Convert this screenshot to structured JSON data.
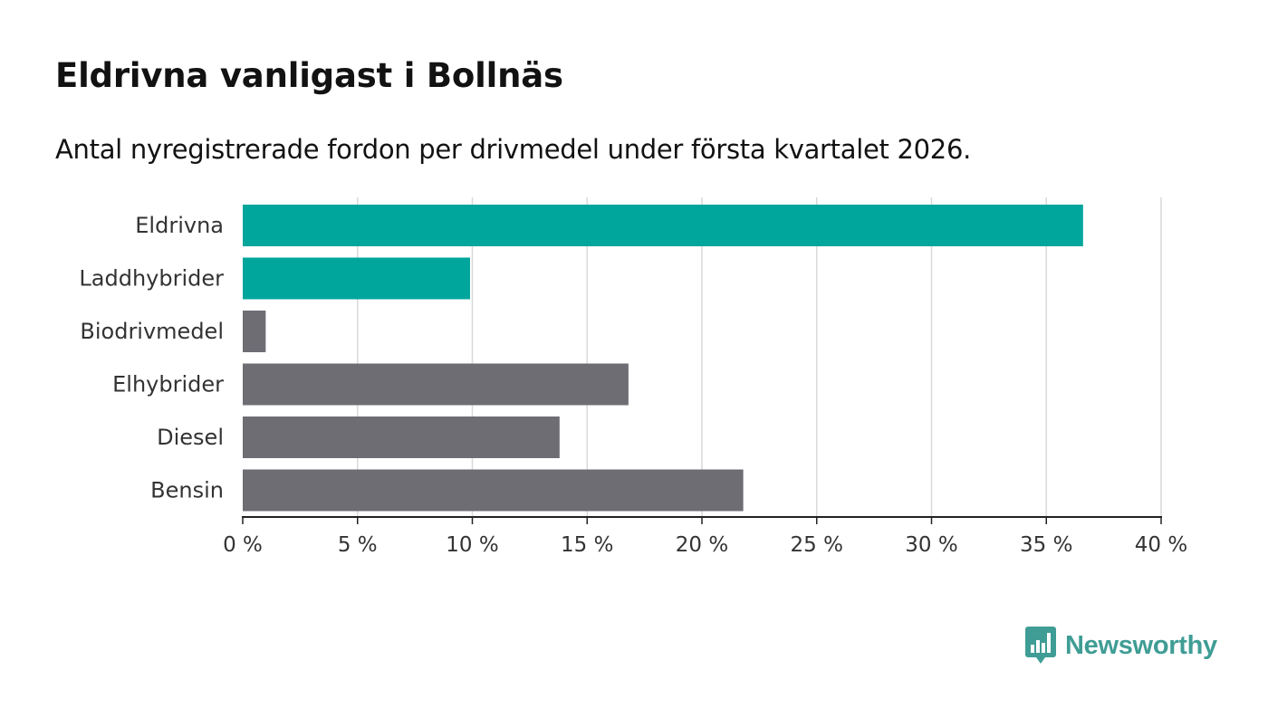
{
  "header": {
    "title": "Eldrivna vanligast i Bollnäs",
    "subtitle": "Antal nyregistrerade fordon per drivmedel under första kvartalet 2026."
  },
  "logo": {
    "text": "Newsworthy",
    "icon": "bar-chart-speech-bubble-icon",
    "color": "#3f9d95"
  },
  "chart_data": {
    "type": "bar",
    "orientation": "horizontal",
    "categories": [
      "Eldrivna",
      "Laddhybrider",
      "Biodrivmedel",
      "Elhybrider",
      "Diesel",
      "Bensin"
    ],
    "values": [
      36.6,
      9.9,
      1.0,
      16.8,
      13.8,
      21.8
    ],
    "colors": [
      "#00a59b",
      "#00a59b",
      "#6e6d74",
      "#6e6d74",
      "#6e6d74",
      "#6e6d74"
    ],
    "xlim": [
      0,
      40
    ],
    "xticks": [
      0,
      5,
      10,
      15,
      20,
      25,
      30,
      35,
      40
    ],
    "xtick_labels": [
      "0 %",
      "5 %",
      "10 %",
      "15 %",
      "20 %",
      "25 %",
      "30 %",
      "35 %",
      "40 %"
    ],
    "grid": true,
    "xlabel": "",
    "ylabel": ""
  }
}
